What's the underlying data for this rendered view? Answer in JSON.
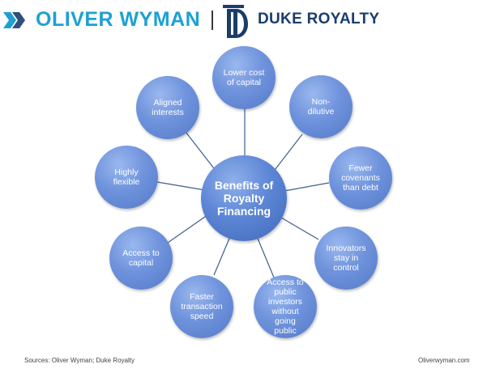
{
  "header": {
    "oliver_wyman_text": "OLIVER WYMAN",
    "duke_royalty_text": "DUKE ROYALTY",
    "oliver_wyman_color": "#1ea0d4",
    "duke_royalty_color": "#1a3d6b"
  },
  "diagram": {
    "center": "Benefits of\nRoyalty\nFinancing",
    "spokes": [
      "Lower cost\nof capital",
      "Non-\ndilutive",
      "Fewer\ncovenants\nthan debt",
      "Innovators\nstay in\ncontrol",
      "Access to\npublic\ninvestors\nwithout\ngoing\npublic",
      "Faster\ntransaction\nspeed",
      "Access to\ncapital",
      "Highly\nflexible",
      "Aligned\ninterests"
    ],
    "node_color": "#6f93dc",
    "connector_color": "#3d5f8a"
  },
  "footer": {
    "sources": "Sources: Oliver Wyman; Duke Royalty",
    "website": "Oliverwyman.com"
  }
}
